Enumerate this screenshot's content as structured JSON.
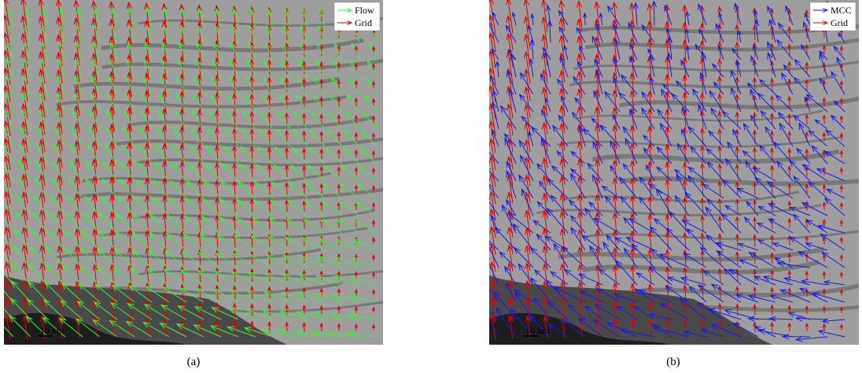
{
  "panels": [
    {
      "legend": [
        "Flow",
        "Grid"
      ],
      "scale": "10 km",
      "caption": "(a)"
    },
    {
      "legend": [
        "MCC",
        "Grid"
      ],
      "scale": "10 km",
      "caption": "(b)"
    }
  ]
}
